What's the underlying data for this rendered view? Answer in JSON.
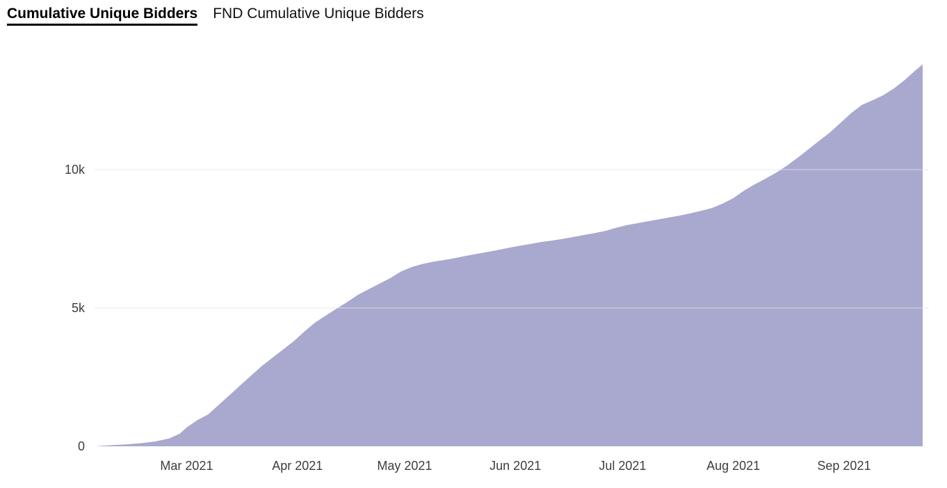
{
  "header": {
    "title": "Cumulative Unique Bidders",
    "subtitle": "FND Cumulative Unique Bidders"
  },
  "colors": {
    "area_fill": "#a9a8ce",
    "gridline": "#f0f0f0",
    "gridline_over_area": "rgba(255,255,255,0.28)",
    "tick_label": "#3d3d3d",
    "title_text": "#000000",
    "background": "#ffffff"
  },
  "chart_data": {
    "type": "area",
    "title": "Cumulative Unique Bidders",
    "series_name": "FND Cumulative Unique Bidders",
    "xlabel": "",
    "ylabel": "",
    "grid": "horizontal",
    "legend_position": "none",
    "x_domain": [
      "2021-02-04",
      "2021-09-23"
    ],
    "ylim": [
      0,
      14000
    ],
    "y_ticks": [
      {
        "label": "0",
        "value": 0
      },
      {
        "label": "5k",
        "value": 5000
      },
      {
        "label": "10k",
        "value": 10000
      }
    ],
    "x_ticks": [
      {
        "label": "Mar 2021",
        "date": "2021-03-01"
      },
      {
        "label": "Apr 2021",
        "date": "2021-04-01"
      },
      {
        "label": "May 2021",
        "date": "2021-05-01"
      },
      {
        "label": "Jun 2021",
        "date": "2021-06-01"
      },
      {
        "label": "Jul 2021",
        "date": "2021-07-01"
      },
      {
        "label": "Aug 2021",
        "date": "2021-08-01"
      },
      {
        "label": "Sep 2021",
        "date": "2021-09-01"
      }
    ],
    "points": [
      [
        "2021-02-04",
        10
      ],
      [
        "2021-02-08",
        40
      ],
      [
        "2021-02-12",
        70
      ],
      [
        "2021-02-16",
        110
      ],
      [
        "2021-02-20",
        170
      ],
      [
        "2021-02-24",
        280
      ],
      [
        "2021-02-27",
        450
      ],
      [
        "2021-03-01",
        680
      ],
      [
        "2021-03-04",
        950
      ],
      [
        "2021-03-07",
        1150
      ],
      [
        "2021-03-10",
        1500
      ],
      [
        "2021-03-13",
        1850
      ],
      [
        "2021-03-16",
        2200
      ],
      [
        "2021-03-19",
        2550
      ],
      [
        "2021-03-22",
        2900
      ],
      [
        "2021-03-25",
        3200
      ],
      [
        "2021-03-28",
        3500
      ],
      [
        "2021-03-31",
        3800
      ],
      [
        "2021-04-03",
        4150
      ],
      [
        "2021-04-06",
        4480
      ],
      [
        "2021-04-09",
        4730
      ],
      [
        "2021-04-12",
        4980
      ],
      [
        "2021-04-15",
        5220
      ],
      [
        "2021-04-18",
        5480
      ],
      [
        "2021-04-21",
        5680
      ],
      [
        "2021-04-24",
        5880
      ],
      [
        "2021-04-27",
        6080
      ],
      [
        "2021-04-30",
        6320
      ],
      [
        "2021-05-03",
        6480
      ],
      [
        "2021-05-06",
        6590
      ],
      [
        "2021-05-09",
        6670
      ],
      [
        "2021-05-12",
        6730
      ],
      [
        "2021-05-15",
        6800
      ],
      [
        "2021-05-18",
        6880
      ],
      [
        "2021-05-21",
        6950
      ],
      [
        "2021-05-24",
        7020
      ],
      [
        "2021-05-27",
        7090
      ],
      [
        "2021-05-30",
        7170
      ],
      [
        "2021-06-02",
        7240
      ],
      [
        "2021-06-05",
        7310
      ],
      [
        "2021-06-08",
        7380
      ],
      [
        "2021-06-11",
        7430
      ],
      [
        "2021-06-14",
        7490
      ],
      [
        "2021-06-17",
        7560
      ],
      [
        "2021-06-20",
        7630
      ],
      [
        "2021-06-23",
        7700
      ],
      [
        "2021-06-26",
        7780
      ],
      [
        "2021-06-29",
        7890
      ],
      [
        "2021-07-02",
        7990
      ],
      [
        "2021-07-05",
        8060
      ],
      [
        "2021-07-08",
        8130
      ],
      [
        "2021-07-11",
        8200
      ],
      [
        "2021-07-14",
        8270
      ],
      [
        "2021-07-17",
        8340
      ],
      [
        "2021-07-20",
        8420
      ],
      [
        "2021-07-23",
        8510
      ],
      [
        "2021-07-26",
        8610
      ],
      [
        "2021-07-29",
        8770
      ],
      [
        "2021-08-01",
        8970
      ],
      [
        "2021-08-04",
        9240
      ],
      [
        "2021-08-07",
        9470
      ],
      [
        "2021-08-10",
        9670
      ],
      [
        "2021-08-13",
        9890
      ],
      [
        "2021-08-16",
        10140
      ],
      [
        "2021-08-19",
        10430
      ],
      [
        "2021-08-22",
        10730
      ],
      [
        "2021-08-25",
        11040
      ],
      [
        "2021-08-28",
        11340
      ],
      [
        "2021-08-31",
        11690
      ],
      [
        "2021-09-03",
        12040
      ],
      [
        "2021-09-06",
        12340
      ],
      [
        "2021-09-09",
        12510
      ],
      [
        "2021-09-12",
        12690
      ],
      [
        "2021-09-15",
        12940
      ],
      [
        "2021-09-18",
        13240
      ],
      [
        "2021-09-21",
        13590
      ],
      [
        "2021-09-23",
        13800
      ]
    ]
  }
}
